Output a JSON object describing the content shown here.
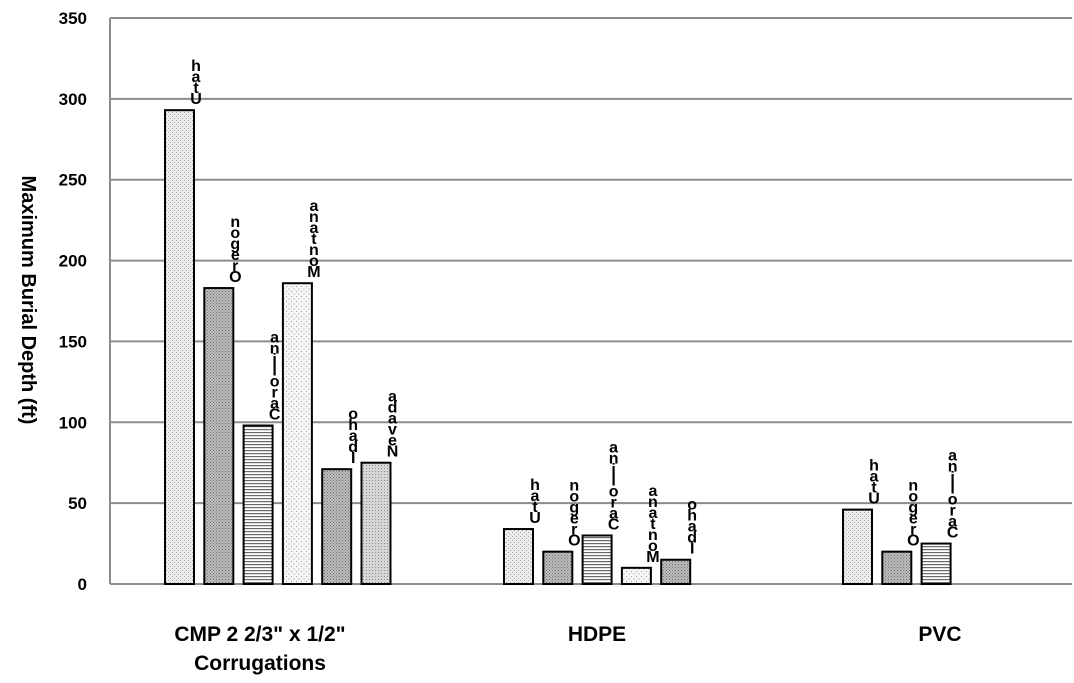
{
  "chart_data": {
    "type": "bar",
    "title": "",
    "xlabel": "",
    "ylabel": "Maximum Burial Depth (ft)",
    "ylim": [
      0,
      350
    ],
    "yticks": [
      0,
      50,
      100,
      150,
      200,
      250,
      300,
      350
    ],
    "grid": true,
    "legend": "none",
    "groups": [
      {
        "category_lines": [
          "CMP     2 2/3\" x 1/2\"",
          "Corrugations"
        ],
        "bars": [
          {
            "label": "Utah",
            "value": 293,
            "pattern": "pat-dots-light"
          },
          {
            "label": "Oregon",
            "value": 183,
            "pattern": "pat-dots-dark"
          },
          {
            "label": "Carolina",
            "value": 98,
            "pattern": "pat-hlines"
          },
          {
            "label": "Montana",
            "value": 186,
            "pattern": "pat-dots-sparse"
          },
          {
            "label": "Idaho",
            "value": 71,
            "pattern": "pat-dots-dark"
          },
          {
            "label": "Nevada",
            "value": 75,
            "pattern": "pat-dots-fine"
          }
        ]
      },
      {
        "category_lines": [
          "HDPE"
        ],
        "bars": [
          {
            "label": "Utah",
            "value": 34,
            "pattern": "pat-dots-light"
          },
          {
            "label": "Oregon",
            "value": 20,
            "pattern": "pat-dots-dark"
          },
          {
            "label": "Carolina",
            "value": 30,
            "pattern": "pat-hlines"
          },
          {
            "label": "Montana",
            "value": 10,
            "pattern": "pat-dots-sparse"
          },
          {
            "label": "Idaho",
            "value": 15,
            "pattern": "pat-dots-dark"
          }
        ]
      },
      {
        "category_lines": [
          "PVC"
        ],
        "bars": [
          {
            "label": "Utah",
            "value": 46,
            "pattern": "pat-dots-light"
          },
          {
            "label": "Oregon",
            "value": 20,
            "pattern": "pat-dots-dark"
          },
          {
            "label": "Carolina",
            "value": 25,
            "pattern": "pat-hlines"
          }
        ]
      }
    ]
  }
}
